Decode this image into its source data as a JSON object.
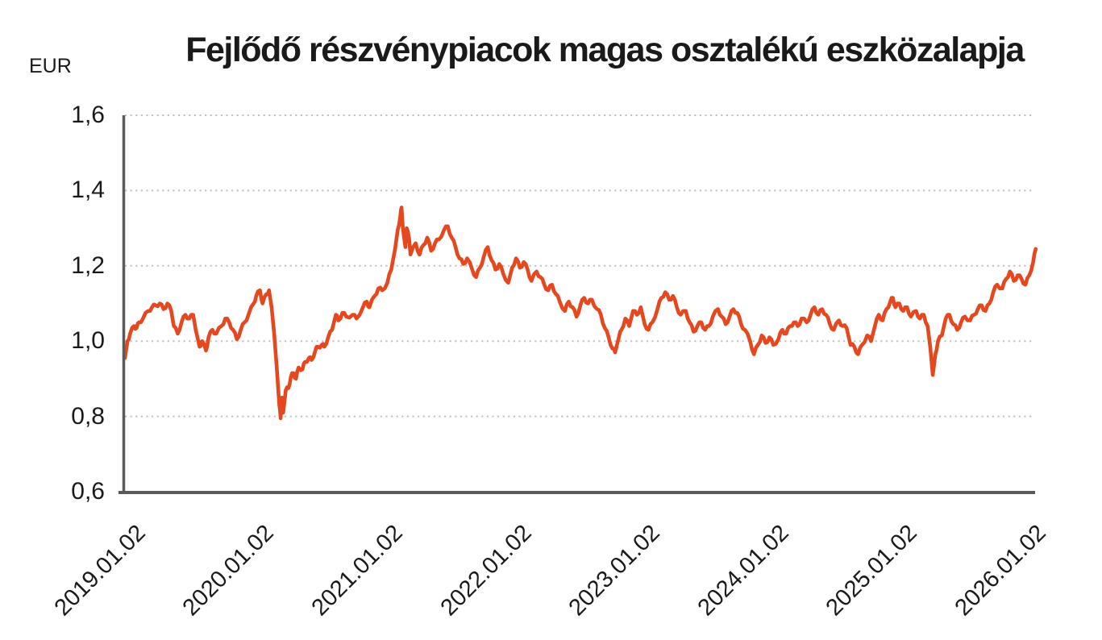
{
  "header": {
    "title": "Fejlődő részvénypiacok magas osztalékú eszközalapja",
    "unit_label": "EUR"
  },
  "colors": {
    "line": "#E5481F",
    "axis": "#5A5A5A",
    "gridline": "#C2C2C2",
    "text": "#1A1A1A",
    "background": "#FFFFFF"
  },
  "chart_data": {
    "type": "line",
    "title": "Fejlődő részvénypiacok magas osztalékú eszközalapja",
    "unit": "EUR",
    "xlabel": "",
    "ylabel": "EUR",
    "grid": "dotted horizontal",
    "legend": "none",
    "y_axis": {
      "range": [
        0.6,
        1.6
      ],
      "tick_values": [
        1.6,
        1.4,
        1.2,
        1.0,
        0.8,
        0.6
      ],
      "tick_labels": [
        "1,6",
        "1,4",
        "1,2",
        "1,0",
        "0,8",
        "0,6"
      ]
    },
    "x_axis": {
      "range_years": [
        2019.0,
        2026.08
      ],
      "tick_values": [
        2019,
        2020,
        2021,
        2022,
        2023,
        2024,
        2025,
        2026
      ],
      "tick_labels": [
        "2019.01.02",
        "2020.01.02",
        "2021.01.02",
        "2022.01.02",
        "2023.01.02",
        "2024.01.02",
        "2025.01.02",
        "2026.01.02"
      ]
    },
    "series": [
      {
        "name": "Fejlődő részvénypiacok magas osztalékú eszközalapja",
        "color": "#E5481F",
        "points": [
          [
            2019.0,
            0.955
          ],
          [
            2019.02,
            1.0
          ],
          [
            2019.04,
            1.02
          ],
          [
            2019.07,
            1.04
          ],
          [
            2019.09,
            1.035
          ],
          [
            2019.11,
            1.05
          ],
          [
            2019.14,
            1.06
          ],
          [
            2019.18,
            1.08
          ],
          [
            2019.21,
            1.09
          ],
          [
            2019.24,
            1.095
          ],
          [
            2019.27,
            1.1
          ],
          [
            2019.3,
            1.085
          ],
          [
            2019.33,
            1.1
          ],
          [
            2019.36,
            1.08
          ],
          [
            2019.38,
            1.04
          ],
          [
            2019.41,
            1.02
          ],
          [
            2019.44,
            1.05
          ],
          [
            2019.47,
            1.07
          ],
          [
            2019.5,
            1.06
          ],
          [
            2019.53,
            1.07
          ],
          [
            2019.55,
            1.03
          ],
          [
            2019.58,
            0.985
          ],
          [
            2019.6,
            1.0
          ],
          [
            2019.63,
            0.975
          ],
          [
            2019.65,
            1.01
          ],
          [
            2019.68,
            1.03
          ],
          [
            2019.71,
            1.02
          ],
          [
            2019.75,
            1.04
          ],
          [
            2019.78,
            1.06
          ],
          [
            2019.81,
            1.05
          ],
          [
            2019.84,
            1.03
          ],
          [
            2019.87,
            1.005
          ],
          [
            2019.9,
            1.03
          ],
          [
            2019.93,
            1.05
          ],
          [
            2019.96,
            1.07
          ],
          [
            2020.0,
            1.1
          ],
          [
            2020.02,
            1.12
          ],
          [
            2020.05,
            1.135
          ],
          [
            2020.07,
            1.1
          ],
          [
            2020.1,
            1.125
          ],
          [
            2020.12,
            1.135
          ],
          [
            2020.14,
            1.09
          ],
          [
            2020.16,
            1.02
          ],
          [
            2020.18,
            0.93
          ],
          [
            2020.2,
            0.83
          ],
          [
            2020.21,
            0.795
          ],
          [
            2020.22,
            0.85
          ],
          [
            2020.23,
            0.81
          ],
          [
            2020.25,
            0.87
          ],
          [
            2020.27,
            0.875
          ],
          [
            2020.29,
            0.905
          ],
          [
            2020.31,
            0.915
          ],
          [
            2020.33,
            0.9
          ],
          [
            2020.35,
            0.93
          ],
          [
            2020.38,
            0.925
          ],
          [
            2020.4,
            0.945
          ],
          [
            2020.43,
            0.955
          ],
          [
            2020.45,
            0.95
          ],
          [
            2020.48,
            0.975
          ],
          [
            2020.5,
            0.985
          ],
          [
            2020.53,
            0.99
          ],
          [
            2020.55,
            0.985
          ],
          [
            2020.58,
            1.01
          ],
          [
            2020.61,
            1.03
          ],
          [
            2020.64,
            1.07
          ],
          [
            2020.66,
            1.055
          ],
          [
            2020.69,
            1.075
          ],
          [
            2020.72,
            1.065
          ],
          [
            2020.77,
            1.07
          ],
          [
            2020.8,
            1.06
          ],
          [
            2020.85,
            1.09
          ],
          [
            2020.88,
            1.105
          ],
          [
            2020.9,
            1.09
          ],
          [
            2020.94,
            1.12
          ],
          [
            2020.97,
            1.14
          ],
          [
            2021.0,
            1.135
          ],
          [
            2021.04,
            1.155
          ],
          [
            2021.07,
            1.19
          ],
          [
            2021.1,
            1.245
          ],
          [
            2021.12,
            1.295
          ],
          [
            2021.14,
            1.33
          ],
          [
            2021.15,
            1.355
          ],
          [
            2021.16,
            1.3
          ],
          [
            2021.18,
            1.25
          ],
          [
            2021.19,
            1.3
          ],
          [
            2021.21,
            1.27
          ],
          [
            2021.22,
            1.23
          ],
          [
            2021.26,
            1.26
          ],
          [
            2021.29,
            1.23
          ],
          [
            2021.32,
            1.255
          ],
          [
            2021.35,
            1.275
          ],
          [
            2021.38,
            1.24
          ],
          [
            2021.41,
            1.26
          ],
          [
            2021.44,
            1.27
          ],
          [
            2021.48,
            1.295
          ],
          [
            2021.51,
            1.305
          ],
          [
            2021.54,
            1.275
          ],
          [
            2021.57,
            1.25
          ],
          [
            2021.6,
            1.22
          ],
          [
            2021.63,
            1.205
          ],
          [
            2021.66,
            1.22
          ],
          [
            2021.7,
            1.19
          ],
          [
            2021.73,
            1.17
          ],
          [
            2021.76,
            1.195
          ],
          [
            2021.79,
            1.225
          ],
          [
            2021.82,
            1.25
          ],
          [
            2021.85,
            1.215
          ],
          [
            2021.88,
            1.19
          ],
          [
            2021.91,
            1.205
          ],
          [
            2021.94,
            1.18
          ],
          [
            2021.98,
            1.155
          ],
          [
            2022.01,
            1.195
          ],
          [
            2022.04,
            1.22
          ],
          [
            2022.07,
            1.195
          ],
          [
            2022.1,
            1.21
          ],
          [
            2022.13,
            1.19
          ],
          [
            2022.16,
            1.16
          ],
          [
            2022.2,
            1.185
          ],
          [
            2022.23,
            1.17
          ],
          [
            2022.26,
            1.15
          ],
          [
            2022.29,
            1.135
          ],
          [
            2022.32,
            1.15
          ],
          [
            2022.35,
            1.125
          ],
          [
            2022.38,
            1.105
          ],
          [
            2022.42,
            1.08
          ],
          [
            2022.45,
            1.105
          ],
          [
            2022.48,
            1.09
          ],
          [
            2022.51,
            1.065
          ],
          [
            2022.54,
            1.095
          ],
          [
            2022.57,
            1.115
          ],
          [
            2022.6,
            1.1
          ],
          [
            2022.63,
            1.11
          ],
          [
            2022.67,
            1.085
          ],
          [
            2022.7,
            1.07
          ],
          [
            2022.73,
            1.035
          ],
          [
            2022.76,
            1.01
          ],
          [
            2022.79,
            0.98
          ],
          [
            2022.81,
            0.97
          ],
          [
            2022.84,
            1.01
          ],
          [
            2022.86,
            1.03
          ],
          [
            2022.89,
            1.06
          ],
          [
            2022.92,
            1.04
          ],
          [
            2022.95,
            1.08
          ],
          [
            2022.98,
            1.07
          ],
          [
            2023.01,
            1.09
          ],
          [
            2023.04,
            1.045
          ],
          [
            2023.07,
            1.03
          ],
          [
            2023.1,
            1.05
          ],
          [
            2023.14,
            1.085
          ],
          [
            2023.17,
            1.115
          ],
          [
            2023.2,
            1.13
          ],
          [
            2023.23,
            1.11
          ],
          [
            2023.26,
            1.12
          ],
          [
            2023.29,
            1.09
          ],
          [
            2023.32,
            1.07
          ],
          [
            2023.36,
            1.08
          ],
          [
            2023.39,
            1.05
          ],
          [
            2023.42,
            1.025
          ],
          [
            2023.45,
            1.04
          ],
          [
            2023.48,
            1.05
          ],
          [
            2023.51,
            1.03
          ],
          [
            2023.54,
            1.04
          ],
          [
            2023.57,
            1.065
          ],
          [
            2023.61,
            1.085
          ],
          [
            2023.64,
            1.065
          ],
          [
            2023.67,
            1.045
          ],
          [
            2023.7,
            1.065
          ],
          [
            2023.73,
            1.085
          ],
          [
            2023.76,
            1.075
          ],
          [
            2023.79,
            1.045
          ],
          [
            2023.82,
            1.03
          ],
          [
            2023.86,
            1.0
          ],
          [
            2023.89,
            0.965
          ],
          [
            2023.92,
            0.99
          ],
          [
            2023.95,
            1.015
          ],
          [
            2023.98,
            0.995
          ],
          [
            2024.01,
            1.01
          ],
          [
            2024.04,
            0.99
          ],
          [
            2024.08,
            1.005
          ],
          [
            2024.11,
            1.03
          ],
          [
            2024.14,
            1.02
          ],
          [
            2024.17,
            1.04
          ],
          [
            2024.2,
            1.05
          ],
          [
            2024.23,
            1.04
          ],
          [
            2024.26,
            1.06
          ],
          [
            2024.3,
            1.05
          ],
          [
            2024.33,
            1.07
          ],
          [
            2024.36,
            1.09
          ],
          [
            2024.39,
            1.07
          ],
          [
            2024.42,
            1.085
          ],
          [
            2024.45,
            1.07
          ],
          [
            2024.48,
            1.045
          ],
          [
            2024.51,
            1.03
          ],
          [
            2024.55,
            1.055
          ],
          [
            2024.58,
            1.04
          ],
          [
            2024.61,
            1.035
          ],
          [
            2024.64,
            0.99
          ],
          [
            2024.67,
            0.985
          ],
          [
            2024.7,
            0.965
          ],
          [
            2024.73,
            0.99
          ],
          [
            2024.77,
            1.015
          ],
          [
            2024.8,
            1.0
          ],
          [
            2024.83,
            1.04
          ],
          [
            2024.86,
            1.07
          ],
          [
            2024.89,
            1.055
          ],
          [
            2024.92,
            1.085
          ],
          [
            2024.95,
            1.105
          ],
          [
            2024.97,
            1.115
          ],
          [
            2024.99,
            1.09
          ],
          [
            2025.02,
            1.1
          ],
          [
            2025.05,
            1.08
          ],
          [
            2025.08,
            1.09
          ],
          [
            2025.11,
            1.065
          ],
          [
            2025.15,
            1.08
          ],
          [
            2025.18,
            1.06
          ],
          [
            2025.21,
            1.07
          ],
          [
            2025.24,
            1.04
          ],
          [
            2025.26,
            0.985
          ],
          [
            2025.28,
            0.91
          ],
          [
            2025.3,
            0.965
          ],
          [
            2025.32,
            1.0
          ],
          [
            2025.35,
            1.015
          ],
          [
            2025.38,
            1.06
          ],
          [
            2025.41,
            1.07
          ],
          [
            2025.44,
            1.045
          ],
          [
            2025.47,
            1.03
          ],
          [
            2025.5,
            1.05
          ],
          [
            2025.53,
            1.065
          ],
          [
            2025.57,
            1.055
          ],
          [
            2025.6,
            1.07
          ],
          [
            2025.63,
            1.085
          ],
          [
            2025.66,
            1.095
          ],
          [
            2025.69,
            1.08
          ],
          [
            2025.72,
            1.1
          ],
          [
            2025.75,
            1.13
          ],
          [
            2025.78,
            1.15
          ],
          [
            2025.82,
            1.14
          ],
          [
            2025.85,
            1.165
          ],
          [
            2025.88,
            1.185
          ],
          [
            2025.91,
            1.16
          ],
          [
            2025.94,
            1.175
          ],
          [
            2025.97,
            1.165
          ],
          [
            2026.0,
            1.15
          ],
          [
            2026.03,
            1.175
          ],
          [
            2026.06,
            1.21
          ],
          [
            2026.08,
            1.245
          ]
        ]
      }
    ]
  }
}
